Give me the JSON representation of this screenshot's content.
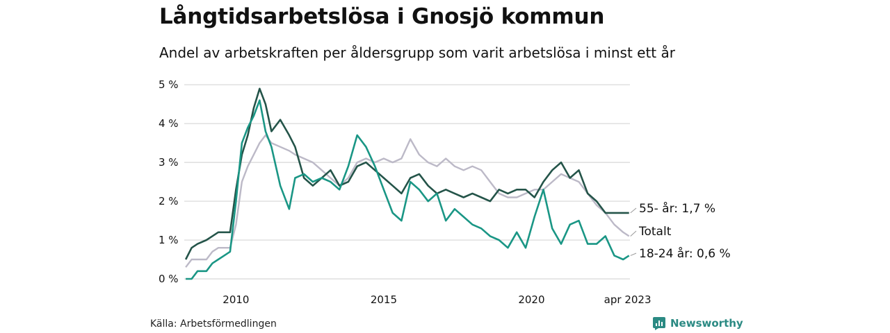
{
  "title": "Långtidsarbetslösa i Gnosjö kommun",
  "subtitle": "Andel av arbetskraften per åldersgrupp som varit arbetslösa i minst ett år",
  "source": "Källa: Arbetsförmedlingen",
  "brand": "Newsworthy",
  "colors": {
    "age55": "#245449",
    "total": "#bcb9c7",
    "age18": "#1a9685",
    "grid": "#dddddd",
    "brand": "#2b8a83"
  },
  "chart_data": {
    "type": "line",
    "title": "Långtidsarbetslösa i Gnosjö kommun",
    "subtitle": "Andel av arbetskraften per åldersgrupp som varit arbetslösa i minst ett år",
    "x_ticks": [
      {
        "x": 2010,
        "label": "2010"
      },
      {
        "x": 2015,
        "label": "2015"
      },
      {
        "x": 2020,
        "label": "2020"
      },
      {
        "x": 2023.25,
        "label": "apr 2023"
      }
    ],
    "y_ticks": [
      {
        "y": 0,
        "label": "0 %"
      },
      {
        "y": 1,
        "label": "1 %"
      },
      {
        "y": 2,
        "label": "2 %"
      },
      {
        "y": 3,
        "label": "3 %"
      },
      {
        "y": 4,
        "label": "4 %"
      },
      {
        "y": 5,
        "label": "5 %"
      }
    ],
    "xlim": [
      2008.25,
      2023.33
    ],
    "ylim": [
      0,
      5.2
    ],
    "grid": "horizontal",
    "series": [
      {
        "key": "total",
        "end_label": "Totalt",
        "x": [
          2008.3,
          2008.5,
          2008.7,
          2009.0,
          2009.2,
          2009.4,
          2009.6,
          2009.8,
          2010.0,
          2010.2,
          2010.4,
          2010.6,
          2010.8,
          2011.0,
          2011.2,
          2011.5,
          2011.8,
          2012.0,
          2012.3,
          2012.6,
          2012.9,
          2013.2,
          2013.5,
          2013.8,
          2014.1,
          2014.4,
          2014.7,
          2015.0,
          2015.3,
          2015.6,
          2015.9,
          2016.2,
          2016.5,
          2016.8,
          2017.1,
          2017.4,
          2017.7,
          2018.0,
          2018.3,
          2018.6,
          2018.9,
          2019.2,
          2019.5,
          2019.8,
          2020.1,
          2020.4,
          2020.7,
          2021.0,
          2021.3,
          2021.6,
          2021.9,
          2022.2,
          2022.5,
          2022.8,
          2023.1,
          2023.3
        ],
        "y": [
          0.3,
          0.5,
          0.5,
          0.5,
          0.7,
          0.8,
          0.8,
          0.8,
          1.4,
          2.5,
          2.9,
          3.2,
          3.5,
          3.7,
          3.5,
          3.4,
          3.3,
          3.2,
          3.1,
          3.0,
          2.8,
          2.6,
          2.4,
          2.6,
          3.0,
          3.1,
          3.0,
          3.1,
          3.0,
          3.1,
          3.6,
          3.2,
          3.0,
          2.9,
          3.1,
          2.9,
          2.8,
          2.9,
          2.8,
          2.5,
          2.2,
          2.1,
          2.1,
          2.2,
          2.3,
          2.3,
          2.5,
          2.7,
          2.6,
          2.5,
          2.2,
          1.9,
          1.7,
          1.4,
          1.2,
          1.1
        ]
      },
      {
        "key": "age55",
        "end_label": "55- år: 1,7 %",
        "x": [
          2008.3,
          2008.5,
          2008.7,
          2009.0,
          2009.2,
          2009.4,
          2009.6,
          2009.8,
          2010.0,
          2010.2,
          2010.4,
          2010.6,
          2010.8,
          2011.0,
          2011.2,
          2011.5,
          2011.8,
          2012.0,
          2012.3,
          2012.6,
          2012.9,
          2013.2,
          2013.5,
          2013.8,
          2014.1,
          2014.4,
          2014.7,
          2015.0,
          2015.3,
          2015.6,
          2015.9,
          2016.2,
          2016.5,
          2016.8,
          2017.1,
          2017.4,
          2017.7,
          2018.0,
          2018.3,
          2018.6,
          2018.9,
          2019.2,
          2019.5,
          2019.8,
          2020.1,
          2020.4,
          2020.7,
          2021.0,
          2021.3,
          2021.6,
          2021.9,
          2022.2,
          2022.5,
          2022.8,
          2023.1,
          2023.3
        ],
        "y": [
          0.5,
          0.8,
          0.9,
          1.0,
          1.1,
          1.2,
          1.2,
          1.2,
          2.3,
          3.2,
          3.7,
          4.4,
          4.9,
          4.5,
          3.8,
          4.1,
          3.7,
          3.4,
          2.6,
          2.4,
          2.6,
          2.8,
          2.4,
          2.5,
          2.9,
          3.0,
          2.8,
          2.6,
          2.4,
          2.2,
          2.6,
          2.7,
          2.4,
          2.2,
          2.3,
          2.2,
          2.1,
          2.2,
          2.1,
          2.0,
          2.3,
          2.2,
          2.3,
          2.3,
          2.1,
          2.5,
          2.8,
          3.0,
          2.6,
          2.8,
          2.2,
          2.0,
          1.7,
          1.7,
          1.7,
          1.7
        ]
      },
      {
        "key": "age18",
        "end_label": "18-24 år: 0,6 %",
        "x": [
          2008.3,
          2008.5,
          2008.7,
          2009.0,
          2009.2,
          2009.4,
          2009.6,
          2009.8,
          2010.0,
          2010.2,
          2010.4,
          2010.6,
          2010.8,
          2011.0,
          2011.2,
          2011.5,
          2011.8,
          2012.0,
          2012.3,
          2012.6,
          2012.9,
          2013.2,
          2013.5,
          2013.8,
          2014.1,
          2014.4,
          2014.7,
          2015.0,
          2015.3,
          2015.6,
          2015.9,
          2016.2,
          2016.5,
          2016.8,
          2017.1,
          2017.4,
          2017.7,
          2018.0,
          2018.3,
          2018.6,
          2018.9,
          2019.2,
          2019.5,
          2019.8,
          2020.1,
          2020.4,
          2020.7,
          2021.0,
          2021.3,
          2021.6,
          2021.9,
          2022.2,
          2022.5,
          2022.8,
          2023.1,
          2023.3
        ],
        "y": [
          0.0,
          0.0,
          0.2,
          0.2,
          0.4,
          0.5,
          0.6,
          0.7,
          2.0,
          3.5,
          3.9,
          4.2,
          4.6,
          3.8,
          3.4,
          2.4,
          1.8,
          2.6,
          2.7,
          2.5,
          2.6,
          2.5,
          2.3,
          2.9,
          3.7,
          3.4,
          2.9,
          2.3,
          1.7,
          1.5,
          2.5,
          2.3,
          2.0,
          2.2,
          1.5,
          1.8,
          1.6,
          1.4,
          1.3,
          1.1,
          1.0,
          0.8,
          1.2,
          0.8,
          1.6,
          2.3,
          1.3,
          0.9,
          1.4,
          1.5,
          0.9,
          0.9,
          1.1,
          0.6,
          0.5,
          0.6
        ]
      }
    ]
  }
}
